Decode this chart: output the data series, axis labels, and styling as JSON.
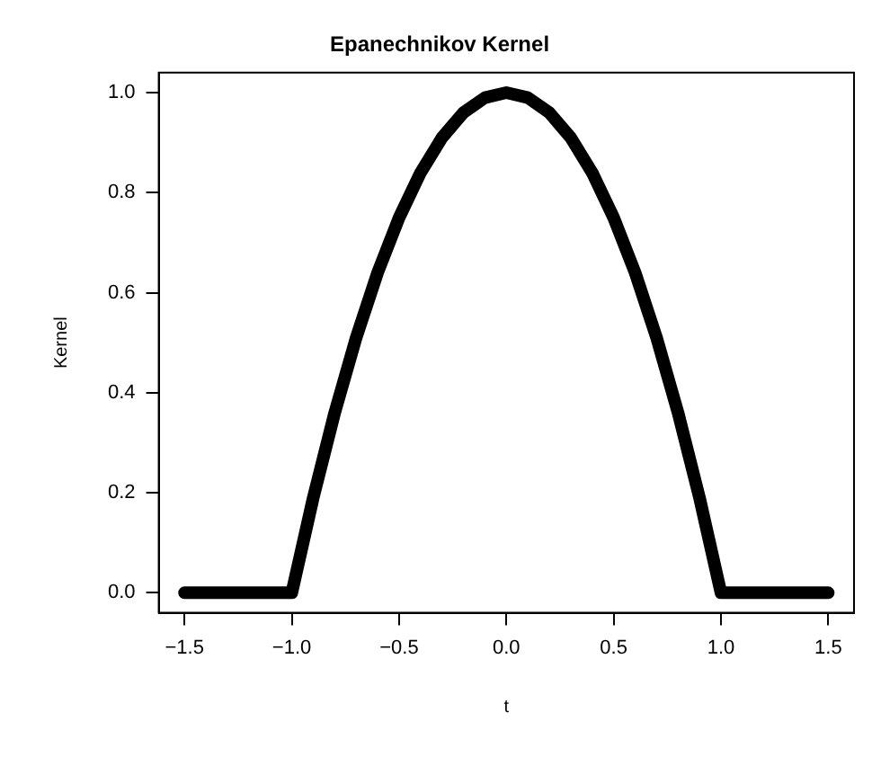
{
  "chart_data": {
    "type": "line",
    "title": "Epanechnikov Kernel",
    "xlabel": "t",
    "ylabel": "Kernel",
    "x": [
      -1.5,
      -1.4,
      -1.3,
      -1.2,
      -1.1,
      -1.0,
      -0.9,
      -0.8,
      -0.7,
      -0.6,
      -0.5,
      -0.4,
      -0.3,
      -0.2,
      -0.1,
      0,
      0.1,
      0.2,
      0.3,
      0.4,
      0.5,
      0.6,
      0.7,
      0.8,
      0.9,
      1.0,
      1.1,
      1.2,
      1.3,
      1.4,
      1.5
    ],
    "series": [
      {
        "color": "#000000",
        "values": [
          0,
          0,
          0,
          0,
          0,
          0,
          0.19,
          0.36,
          0.51,
          0.64,
          0.75,
          0.84,
          0.91,
          0.96,
          0.99,
          1,
          0.99,
          0.96,
          0.91,
          0.84,
          0.75,
          0.64,
          0.51,
          0.36,
          0.19,
          0,
          0,
          0,
          0,
          0,
          0
        ]
      }
    ],
    "xlim": [
      -1.62,
      1.62
    ],
    "xticks": [
      {
        "value": -1.5,
        "label": "−1.5"
      },
      {
        "value": -1.0,
        "label": "−1.0"
      },
      {
        "value": -0.5,
        "label": "−0.5"
      },
      {
        "value": 0,
        "label": "0.0"
      },
      {
        "value": 0.5,
        "label": "0.5"
      },
      {
        "value": 1.0,
        "label": "1.0"
      },
      {
        "value": 1.5,
        "label": "1.5"
      }
    ],
    "ylim": [
      -0.04,
      1.04
    ],
    "yticks": [
      {
        "value": 0,
        "label": "0.0"
      },
      {
        "value": 0.2,
        "label": "0.2"
      },
      {
        "value": 0.4,
        "label": "0.4"
      },
      {
        "value": 0.6,
        "label": "0.6"
      },
      {
        "value": 0.8,
        "label": "0.8"
      },
      {
        "value": 1.0,
        "label": "1.0"
      }
    ],
    "grid": false,
    "legend": false,
    "marker": "none",
    "line_style": "solid"
  }
}
